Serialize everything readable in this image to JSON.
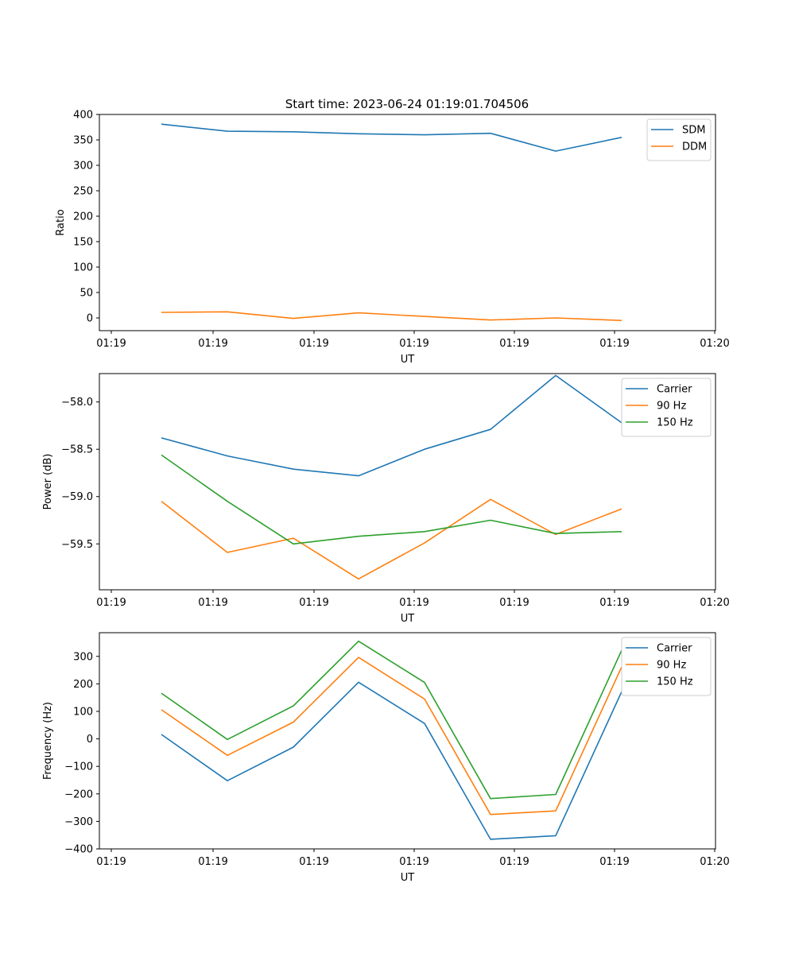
{
  "title": "Start time: 2023-06-24 01:19:01.704506",
  "colors": {
    "blue": "#1f77b4",
    "orange": "#ff7f0e",
    "green": "#2ca02c",
    "axis": "#000000"
  },
  "chart_data": [
    {
      "type": "line",
      "title": "Start time: 2023-06-24 01:19:01.704506",
      "xlabel": "UT",
      "ylabel": "Ratio",
      "xtick_labels": [
        "01:19",
        "01:19",
        "01:19",
        "01:19",
        "01:19",
        "01:19",
        "01:20"
      ],
      "ylim": [
        -25,
        400
      ],
      "yticks": [
        0,
        50,
        100,
        150,
        200,
        250,
        300,
        350,
        400
      ],
      "ytick_labels": [
        "0",
        "50",
        "100",
        "150",
        "200",
        "250",
        "300",
        "350",
        "400"
      ],
      "grid": false,
      "legend_position": "top-right",
      "series": [
        {
          "name": "SDM",
          "color": "#1f77b4",
          "values": [
            381,
            367,
            366,
            362,
            360,
            363,
            328,
            355
          ]
        },
        {
          "name": "DDM",
          "color": "#ff7f0e",
          "values": [
            11,
            12,
            -1,
            10,
            3,
            -4,
            0,
            -5
          ]
        }
      ]
    },
    {
      "type": "line",
      "xlabel": "UT",
      "ylabel": "Power (dB)",
      "xtick_labels": [
        "01:19",
        "01:19",
        "01:19",
        "01:19",
        "01:19",
        "01:19",
        "01:20"
      ],
      "ylim": [
        -59.985,
        -57.7
      ],
      "yticks": [
        -59.5,
        -59.0,
        -58.5,
        -58.0
      ],
      "ytick_labels": [
        "−59.5",
        "−59.0",
        "−58.5",
        "−58.0"
      ],
      "grid": false,
      "legend_position": "top-right",
      "series": [
        {
          "name": "Carrier",
          "color": "#1f77b4",
          "values": [
            -58.38,
            -58.57,
            -58.71,
            -58.78,
            -58.5,
            -58.29,
            -57.72,
            -58.22
          ]
        },
        {
          "name": "90 Hz",
          "color": "#ff7f0e",
          "values": [
            -59.05,
            -59.59,
            -59.44,
            -59.87,
            -59.49,
            -59.03,
            -59.4,
            -59.13
          ]
        },
        {
          "name": "150 Hz",
          "color": "#2ca02c",
          "values": [
            -58.56,
            -59.05,
            -59.5,
            -59.42,
            -59.37,
            -59.25,
            -59.39,
            -59.37
          ]
        }
      ]
    },
    {
      "type": "line",
      "xlabel": "UT",
      "ylabel": "Frequency (Hz)",
      "xtick_labels": [
        "01:19",
        "01:19",
        "01:19",
        "01:19",
        "01:19",
        "01:19",
        "01:20"
      ],
      "ylim": [
        -400,
        386
      ],
      "yticks": [
        -400,
        -300,
        -200,
        -100,
        0,
        100,
        200,
        300
      ],
      "ytick_labels": [
        "−400",
        "−300",
        "−200",
        "−100",
        "0",
        "100",
        "200",
        "300"
      ],
      "grid": false,
      "legend_position": "top-right",
      "series": [
        {
          "name": "Carrier",
          "color": "#1f77b4",
          "values": [
            16,
            -152,
            -30,
            206,
            56,
            -365,
            -352,
            172
          ]
        },
        {
          "name": "90 Hz",
          "color": "#ff7f0e",
          "values": [
            106,
            -60,
            61,
            296,
            145,
            -275,
            -262,
            262
          ]
        },
        {
          "name": "150 Hz",
          "color": "#2ca02c",
          "values": [
            166,
            -2,
            120,
            355,
            205,
            -217,
            -202,
            322
          ]
        }
      ]
    }
  ]
}
